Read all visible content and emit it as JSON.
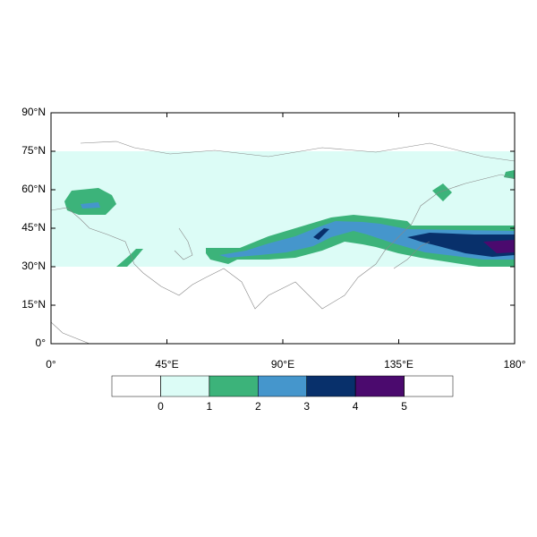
{
  "chart_data": {
    "type": "contour-map",
    "xlim": [
      0,
      180
    ],
    "ylim": [
      0,
      90
    ],
    "xticks": [
      {
        "value": 0,
        "label": "0°"
      },
      {
        "value": 45,
        "label": "45°E"
      },
      {
        "value": 90,
        "label": "90°E"
      },
      {
        "value": 135,
        "label": "135°E"
      },
      {
        "value": 180,
        "label": "180°"
      }
    ],
    "yticks": [
      {
        "value": 0,
        "label": "0°"
      },
      {
        "value": 15,
        "label": "15°N"
      },
      {
        "value": 30,
        "label": "30°N"
      },
      {
        "value": 45,
        "label": "45°N"
      },
      {
        "value": 60,
        "label": "60°N"
      },
      {
        "value": 75,
        "label": "75°N"
      },
      {
        "value": 90,
        "label": "90°N"
      }
    ],
    "colorbar": {
      "levels": [
        0,
        1,
        2,
        3,
        4,
        5
      ],
      "colors": [
        "#ffffff",
        "#dcfcf6",
        "#3cb37a",
        "#4596cc",
        "#08306b",
        "#4b0a6e",
        "#ffffff"
      ]
    }
  }
}
